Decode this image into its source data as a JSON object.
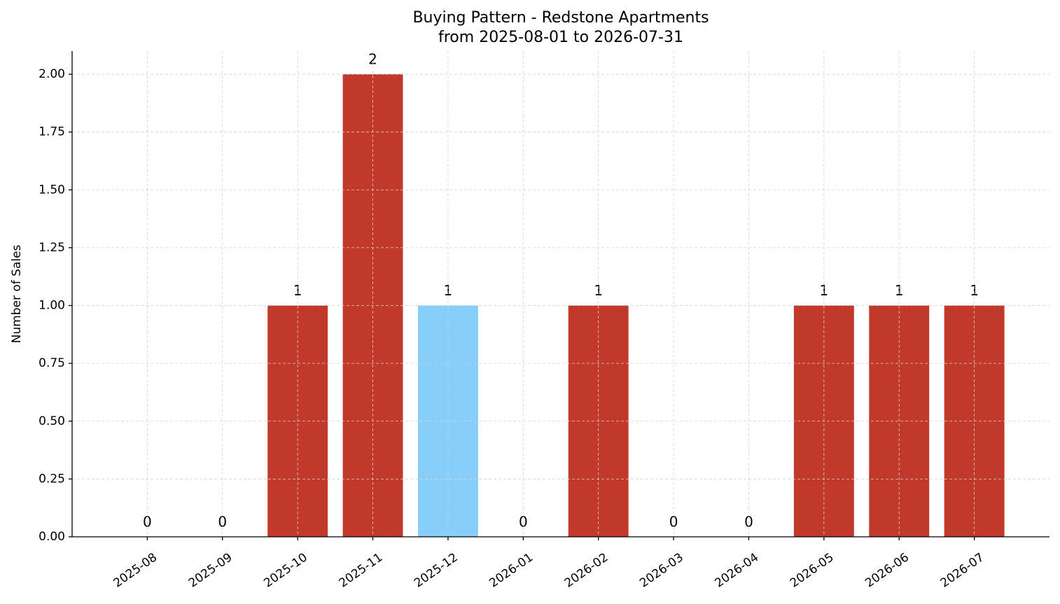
{
  "chart_data": {
    "type": "bar",
    "title": "Buying Pattern - Redstone Apartments",
    "subtitle": "from 2025-08-01 to 2026-07-31",
    "y_label": "Number of Sales",
    "categories": [
      "2025-08",
      "2025-09",
      "2025-10",
      "2025-11",
      "2025-12",
      "2026-01",
      "2026-02",
      "2026-03",
      "2026-04",
      "2026-05",
      "2026-06",
      "2026-07"
    ],
    "values": [
      0,
      0,
      1,
      2,
      1,
      0,
      1,
      0,
      0,
      1,
      1,
      1
    ],
    "colors": [
      "#c0392b",
      "#c0392b",
      "#c0392b",
      "#c0392b",
      "#87cefa",
      "#c0392b",
      "#c0392b",
      "#c0392b",
      "#c0392b",
      "#c0392b",
      "#c0392b",
      "#c0392b"
    ],
    "ylim": [
      0,
      2.1
    ],
    "yticks": [
      {
        "value": 0,
        "label": "0.00"
      },
      {
        "value": 0.25,
        "label": "0.25"
      },
      {
        "value": 0.5,
        "label": "0.50"
      },
      {
        "value": 0.75,
        "label": "0.75"
      },
      {
        "value": 1,
        "label": "1.00"
      },
      {
        "value": 1.25,
        "label": "1.25"
      },
      {
        "value": 1.5,
        "label": "1.50"
      },
      {
        "value": 1.75,
        "label": "1.75"
      },
      {
        "value": 2,
        "label": "2.00"
      }
    ],
    "grid": true
  }
}
